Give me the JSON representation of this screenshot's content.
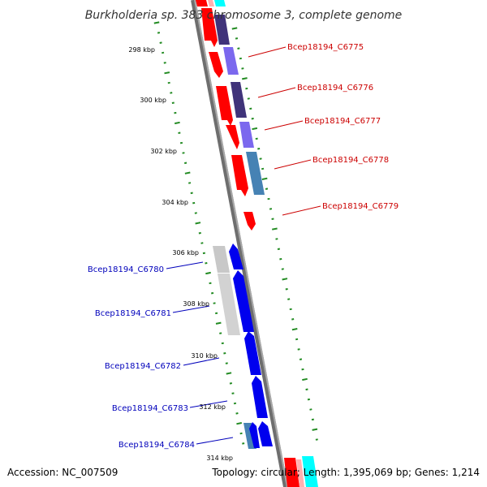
{
  "title": "Burkholderia sp. 383 chromosome 3, complete genome",
  "footer": {
    "accession": "Accession: NC_007509",
    "info": "Topology: circular; Length: 1,395,069 bp; Genes: 1,214"
  },
  "ticks": [
    "298 kbp",
    "300 kbp",
    "302 kbp",
    "304 kbp",
    "306 kbp",
    "308 kbp",
    "310 kbp",
    "312 kbp",
    "314 kbp"
  ],
  "genes": [
    {
      "name": "Bcep18194_C6775",
      "strand": "forward"
    },
    {
      "name": "Bcep18194_C6776",
      "strand": "forward"
    },
    {
      "name": "Bcep18194_C6777",
      "strand": "forward"
    },
    {
      "name": "Bcep18194_C6778",
      "strand": "forward"
    },
    {
      "name": "Bcep18194_C6779",
      "strand": "forward"
    },
    {
      "name": "Bcep18194_C6780",
      "strand": "reverse"
    },
    {
      "name": "Bcep18194_C6781",
      "strand": "reverse"
    },
    {
      "name": "Bcep18194_C6782",
      "strand": "reverse"
    },
    {
      "name": "Bcep18194_C6783",
      "strand": "reverse"
    },
    {
      "name": "Bcep18194_C6784",
      "strand": "reverse"
    }
  ],
  "colors": {
    "forward_cds": "#ff0000",
    "reverse_cds": "#0000ff",
    "purple_feature": "#5a4a9a",
    "steelblue_feature": "#4682b4",
    "gray_feature": "#c0c0c0",
    "cyan_feature": "#00ffff",
    "pink_feature": "#ffaaaa",
    "backbone": "#808080",
    "tick_marks": "#228b22"
  }
}
